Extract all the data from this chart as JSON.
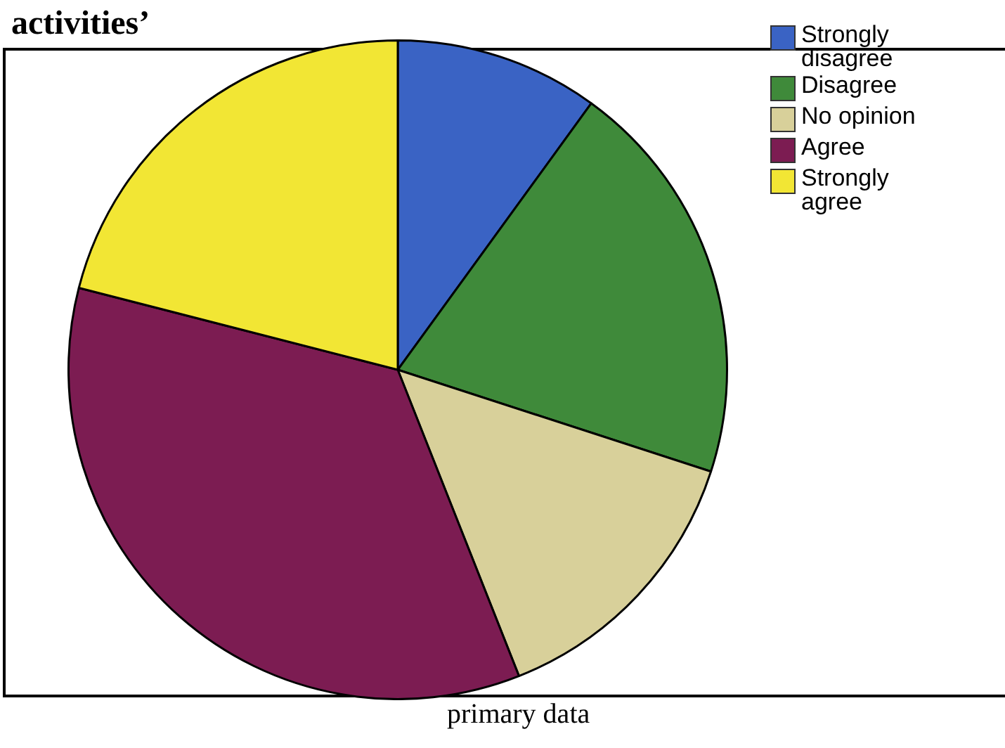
{
  "chart_data": {
    "type": "pie",
    "title": "activities’",
    "categories": [
      "Strongly disagree",
      "Disagree",
      "No opinion",
      "Agree",
      "Strongly agree"
    ],
    "values": [
      10,
      20,
      14,
      35,
      21
    ],
    "colors": [
      "#3a63c4",
      "#3f8a3a",
      "#d8d09a",
      "#7c1c52",
      "#f2e634"
    ],
    "legend": "top right",
    "annotations": [
      "primary data"
    ]
  }
}
